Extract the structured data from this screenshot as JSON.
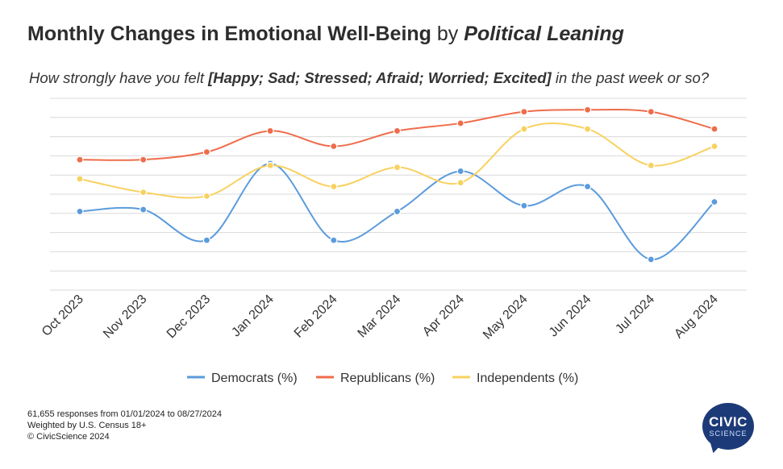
{
  "header": {
    "title_main": "Monthly Changes in Emotional Well-Being",
    "title_by": "by",
    "title_lean": "Political Leaning",
    "subtitle_pre": "How strongly have you felt",
    "subtitle_bold": "[Happy; Sad; Stressed; Afraid; Worried; Excited]",
    "subtitle_post": "in the past week or so?"
  },
  "chart_data": {
    "type": "line",
    "title": "Monthly Changes in Emotional Well-Being by Political Leaning",
    "categories": [
      "Oct 2023",
      "Nov 2023",
      "Dec 2023",
      "Jan 2024",
      "Feb 2024",
      "Mar 2024",
      "Apr 2024",
      "May 2024",
      "Jun 2024",
      "Jul 2024",
      "Aug 2024"
    ],
    "series": [
      {
        "name": "Democrats (%)",
        "color": "#5b9bdc",
        "values": [
          4.1,
          4.2,
          2.6,
          6.6,
          2.6,
          4.1,
          6.2,
          4.4,
          5.4,
          1.6,
          4.6
        ]
      },
      {
        "name": "Republicans (%)",
        "color": "#ef6c4a",
        "values": [
          6.8,
          6.8,
          7.2,
          8.3,
          7.5,
          8.3,
          8.7,
          9.3,
          9.4,
          9.3,
          8.4
        ]
      },
      {
        "name": "Independents (%)",
        "color": "#f8d160",
        "values": [
          5.8,
          5.1,
          4.9,
          6.5,
          5.4,
          6.4,
          5.6,
          8.4,
          8.4,
          6.5,
          7.5
        ]
      }
    ],
    "ylim": [
      0,
      10
    ],
    "grid": true,
    "y_tick_labels_shown": false,
    "legend_position": "bottom"
  },
  "legend": {
    "items": [
      "Democrats (%)",
      "Republicans (%)",
      "Independents (%)"
    ]
  },
  "footer": {
    "line1": "61,655 responses from 01/01/2024 to 08/27/2024",
    "line2": "Weighted by U.S. Census 18+",
    "line3": "© CivicScience 2024"
  },
  "logo": {
    "line1": "CIVIC",
    "line2": "SCIENCE"
  }
}
